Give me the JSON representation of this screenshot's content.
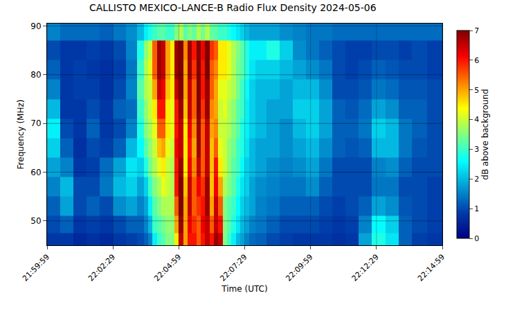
{
  "chart_data": {
    "type": "heatmap",
    "title": "CALLISTO MEXICO-LANCE-B Radio Flux Density 2024-05-06",
    "x_label": "Time (UTC)",
    "y_label": "Frequency (MHz)",
    "color": "Jet",
    "grid": true,
    "xlim": [
      "21:59:59",
      "22:14:59"
    ],
    "xticks": [
      "21:59:59",
      "22:02:29",
      "22:04:59",
      "22:07:29",
      "22:09:59",
      "22:12:29",
      "22:14:59"
    ],
    "ylim": [
      45,
      90.5
    ],
    "yticks": [
      50,
      60,
      70,
      80,
      90
    ],
    "colorbar": {
      "label": "dB above background",
      "range": [
        0,
        7
      ],
      "ticks": [
        0,
        1,
        2,
        3,
        4,
        5,
        6,
        7
      ]
    },
    "x": [
      "22:00:14",
      "22:00:44",
      "22:01:14",
      "22:01:44",
      "22:02:14",
      "22:02:44",
      "22:03:14",
      "22:03:34",
      "22:03:44",
      "22:03:54",
      "22:04:04",
      "22:04:14",
      "22:04:24",
      "22:04:34",
      "22:04:44",
      "22:04:54",
      "22:05:04",
      "22:05:14",
      "22:05:24",
      "22:05:34",
      "22:05:44",
      "22:05:54",
      "22:06:04",
      "22:06:14",
      "22:06:24",
      "22:06:34",
      "22:06:44",
      "22:06:54",
      "22:07:04",
      "22:07:14",
      "22:07:24",
      "22:07:34",
      "22:07:44",
      "22:08:04",
      "22:08:34",
      "22:09:04",
      "22:09:34",
      "22:10:04",
      "22:10:34",
      "22:11:04",
      "22:11:34",
      "22:12:04",
      "22:12:34",
      "22:13:04",
      "22:13:34",
      "22:14:04",
      "22:14:44"
    ],
    "y": [
      46,
      49,
      53,
      57,
      61,
      65,
      69,
      73,
      77,
      81,
      85,
      89
    ],
    "z": [
      [
        0.8,
        1.0,
        1.2,
        1.5,
        1.8,
        2.2,
        2.5,
        2.0,
        1.5,
        1.2,
        1.0,
        1.5
      ],
      [
        0.8,
        1.2,
        1.8,
        2.0,
        1.5,
        1.2,
        1.0,
        0.8,
        0.8,
        0.8,
        0.8,
        1.3
      ],
      [
        0.6,
        0.8,
        1.0,
        1.0,
        0.8,
        0.7,
        0.8,
        0.8,
        0.9,
        0.9,
        0.8,
        1.3
      ],
      [
        0.7,
        0.9,
        1.2,
        1.0,
        0.9,
        1.0,
        1.2,
        1.0,
        0.9,
        0.8,
        0.9,
        1.3
      ],
      [
        0.6,
        0.8,
        1.0,
        1.4,
        1.3,
        0.9,
        0.8,
        0.8,
        0.7,
        0.7,
        0.8,
        1.2
      ],
      [
        0.8,
        1.0,
        1.6,
        2.0,
        1.8,
        1.2,
        1.0,
        1.2,
        1.0,
        0.9,
        1.0,
        1.4
      ],
      [
        0.9,
        1.2,
        1.8,
        2.2,
        2.4,
        2.0,
        1.5,
        1.3,
        1.5,
        1.4,
        1.5,
        1.6
      ],
      [
        1.0,
        1.2,
        1.5,
        1.8,
        2.2,
        2.6,
        2.8,
        3.0,
        3.2,
        3.0,
        2.8,
        2.0
      ],
      [
        1.2,
        1.5,
        1.8,
        2.2,
        2.8,
        3.2,
        3.5,
        3.6,
        3.8,
        3.8,
        3.6,
        2.5
      ],
      [
        1.5,
        2.0,
        2.5,
        3.0,
        3.4,
        3.6,
        3.8,
        4.0,
        4.0,
        4.2,
        4.0,
        2.8
      ],
      [
        2.5,
        3.0,
        3.2,
        3.5,
        3.8,
        4.0,
        4.2,
        4.5,
        5.0,
        5.5,
        5.5,
        3.0
      ],
      [
        3.0,
        3.2,
        3.5,
        3.8,
        4.2,
        4.8,
        5.5,
        6.0,
        6.5,
        6.8,
        6.8,
        3.2
      ],
      [
        3.2,
        3.4,
        3.8,
        4.2,
        4.5,
        5.0,
        5.5,
        6.0,
        6.2,
        6.5,
        6.5,
        3.2
      ],
      [
        3.5,
        3.6,
        3.8,
        4.0,
        4.0,
        4.2,
        4.5,
        4.5,
        4.8,
        5.0,
        5.0,
        3.0
      ],
      [
        3.5,
        3.6,
        3.8,
        3.8,
        3.8,
        4.0,
        4.2,
        4.2,
        4.5,
        4.5,
        4.5,
        3.0
      ],
      [
        4.5,
        5.0,
        5.5,
        6.0,
        6.0,
        6.2,
        6.0,
        6.0,
        6.5,
        6.8,
        6.8,
        3.5
      ],
      [
        6.5,
        6.8,
        7.0,
        7.0,
        6.8,
        6.5,
        6.5,
        6.8,
        7.0,
        7.0,
        7.0,
        3.8
      ],
      [
        5.0,
        5.0,
        5.0,
        4.8,
        4.5,
        4.5,
        4.5,
        4.8,
        5.0,
        5.0,
        5.2,
        3.2
      ],
      [
        6.0,
        6.2,
        6.5,
        6.5,
        6.2,
        6.0,
        6.2,
        6.5,
        6.5,
        6.8,
        6.8,
        3.5
      ],
      [
        6.0,
        5.8,
        5.5,
        5.5,
        5.2,
        5.0,
        5.2,
        5.5,
        5.5,
        5.8,
        6.0,
        3.3
      ],
      [
        5.5,
        5.5,
        5.8,
        6.2,
        6.5,
        6.8,
        6.8,
        7.0,
        7.0,
        7.0,
        7.0,
        3.8
      ],
      [
        6.0,
        6.2,
        6.0,
        5.8,
        5.5,
        5.5,
        5.5,
        5.8,
        6.0,
        6.0,
        6.2,
        3.4
      ],
      [
        6.5,
        6.5,
        6.8,
        6.8,
        6.5,
        6.5,
        6.5,
        6.8,
        6.8,
        7.0,
        7.0,
        3.8
      ],
      [
        6.0,
        5.5,
        5.0,
        4.8,
        4.8,
        4.8,
        5.0,
        5.2,
        5.5,
        5.5,
        5.8,
        3.3
      ],
      [
        6.8,
        6.5,
        6.5,
        6.2,
        6.0,
        5.5,
        5.2,
        5.0,
        5.0,
        5.2,
        5.5,
        3.2
      ],
      [
        6.5,
        6.0,
        5.5,
        5.0,
        4.5,
        4.2,
        4.0,
        4.0,
        4.2,
        4.5,
        4.5,
        3.0
      ],
      [
        3.5,
        3.5,
        3.5,
        3.8,
        4.0,
        4.0,
        4.0,
        4.2,
        4.2,
        4.5,
        4.5,
        3.0
      ],
      [
        3.0,
        3.2,
        3.2,
        3.5,
        3.6,
        3.6,
        3.8,
        3.8,
        4.0,
        4.2,
        4.2,
        2.8
      ],
      [
        2.5,
        2.8,
        3.0,
        3.2,
        3.2,
        3.4,
        3.5,
        3.6,
        3.8,
        3.8,
        3.8,
        2.6
      ],
      [
        2.0,
        2.4,
        2.6,
        2.8,
        3.0,
        3.0,
        3.2,
        3.2,
        3.4,
        3.4,
        3.5,
        2.4
      ],
      [
        1.8,
        2.0,
        2.2,
        2.4,
        2.6,
        2.8,
        2.8,
        3.0,
        3.0,
        3.2,
        3.2,
        2.2
      ],
      [
        1.5,
        1.8,
        2.0,
        2.2,
        2.2,
        2.4,
        2.5,
        2.5,
        2.6,
        2.8,
        2.8,
        2.0
      ],
      [
        1.3,
        1.5,
        1.8,
        1.8,
        2.0,
        2.0,
        2.2,
        2.2,
        2.2,
        2.4,
        2.5,
        1.8
      ],
      [
        1.2,
        1.4,
        1.5,
        1.6,
        1.8,
        1.8,
        2.0,
        2.0,
        2.0,
        2.2,
        2.5,
        1.8
      ],
      [
        1.0,
        1.2,
        1.4,
        1.5,
        1.6,
        1.8,
        1.8,
        1.8,
        2.0,
        2.2,
        2.8,
        1.8
      ],
      [
        0.9,
        1.0,
        1.2,
        1.4,
        1.5,
        1.6,
        1.6,
        1.8,
        1.8,
        2.0,
        2.2,
        1.6
      ],
      [
        0.8,
        1.0,
        1.2,
        1.4,
        1.6,
        1.8,
        2.0,
        2.2,
        2.0,
        1.8,
        1.6,
        1.5
      ],
      [
        0.8,
        1.0,
        1.2,
        1.6,
        1.8,
        2.0,
        2.2,
        2.2,
        2.0,
        1.6,
        1.4,
        1.4
      ],
      [
        0.8,
        0.9,
        1.0,
        1.2,
        1.4,
        1.6,
        1.8,
        1.8,
        1.6,
        1.4,
        1.2,
        1.4
      ],
      [
        0.7,
        0.8,
        0.9,
        1.0,
        1.0,
        1.2,
        1.2,
        1.2,
        1.0,
        1.0,
        1.0,
        1.3
      ],
      [
        0.8,
        0.9,
        1.0,
        1.0,
        1.0,
        1.1,
        1.2,
        1.1,
        1.0,
        0.9,
        0.9,
        1.3
      ],
      [
        1.8,
        1.5,
        1.2,
        1.0,
        1.0,
        1.2,
        1.4,
        1.3,
        1.1,
        1.0,
        0.9,
        1.3
      ],
      [
        2.8,
        2.6,
        1.8,
        1.4,
        1.5,
        2.0,
        2.2,
        1.8,
        1.4,
        1.2,
        1.0,
        1.3
      ],
      [
        2.4,
        2.2,
        1.6,
        1.4,
        1.6,
        2.0,
        2.0,
        1.6,
        1.3,
        1.1,
        1.0,
        1.3
      ],
      [
        1.2,
        1.2,
        1.1,
        1.0,
        1.2,
        1.4,
        1.4,
        1.2,
        1.1,
        1.0,
        0.9,
        1.3
      ],
      [
        0.9,
        1.0,
        1.0,
        1.0,
        1.0,
        1.1,
        1.2,
        1.2,
        1.1,
        1.0,
        1.0,
        1.3
      ],
      [
        0.8,
        0.9,
        0.9,
        0.9,
        1.0,
        1.0,
        1.0,
        1.0,
        1.0,
        0.9,
        0.9,
        1.3
      ]
    ]
  }
}
